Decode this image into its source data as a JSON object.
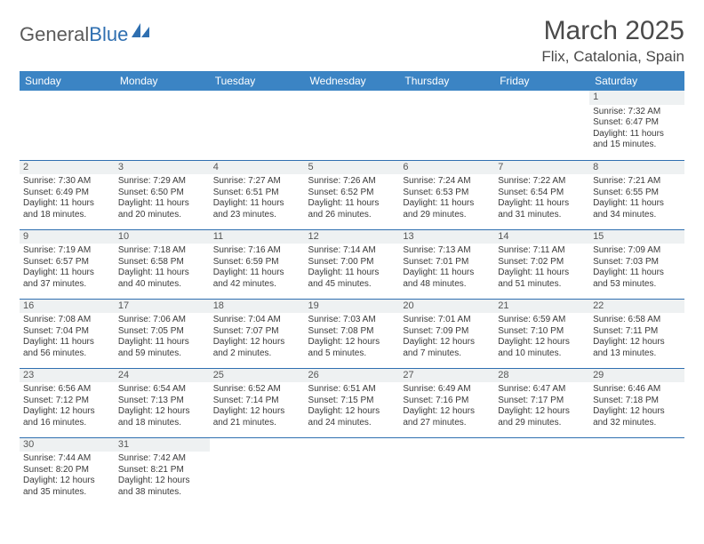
{
  "logo": {
    "text1": "General",
    "text2": "Blue",
    "sail_color": "#2f6fb0"
  },
  "title": "March 2025",
  "location": "Flix, Catalonia, Spain",
  "colors": {
    "header_bg": "#3b84c4",
    "header_fg": "#ffffff",
    "border": "#2f6fb0",
    "daynum_bg": "#eef1f2",
    "text": "#3a3a3a"
  },
  "day_headers": [
    "Sunday",
    "Monday",
    "Tuesday",
    "Wednesday",
    "Thursday",
    "Friday",
    "Saturday"
  ],
  "weeks": [
    [
      null,
      null,
      null,
      null,
      null,
      null,
      {
        "n": "1",
        "sunrise": "7:32 AM",
        "sunset": "6:47 PM",
        "daylight": "11 hours and 15 minutes."
      }
    ],
    [
      {
        "n": "2",
        "sunrise": "7:30 AM",
        "sunset": "6:49 PM",
        "daylight": "11 hours and 18 minutes."
      },
      {
        "n": "3",
        "sunrise": "7:29 AM",
        "sunset": "6:50 PM",
        "daylight": "11 hours and 20 minutes."
      },
      {
        "n": "4",
        "sunrise": "7:27 AM",
        "sunset": "6:51 PM",
        "daylight": "11 hours and 23 minutes."
      },
      {
        "n": "5",
        "sunrise": "7:26 AM",
        "sunset": "6:52 PM",
        "daylight": "11 hours and 26 minutes."
      },
      {
        "n": "6",
        "sunrise": "7:24 AM",
        "sunset": "6:53 PM",
        "daylight": "11 hours and 29 minutes."
      },
      {
        "n": "7",
        "sunrise": "7:22 AM",
        "sunset": "6:54 PM",
        "daylight": "11 hours and 31 minutes."
      },
      {
        "n": "8",
        "sunrise": "7:21 AM",
        "sunset": "6:55 PM",
        "daylight": "11 hours and 34 minutes."
      }
    ],
    [
      {
        "n": "9",
        "sunrise": "7:19 AM",
        "sunset": "6:57 PM",
        "daylight": "11 hours and 37 minutes."
      },
      {
        "n": "10",
        "sunrise": "7:18 AM",
        "sunset": "6:58 PM",
        "daylight": "11 hours and 40 minutes."
      },
      {
        "n": "11",
        "sunrise": "7:16 AM",
        "sunset": "6:59 PM",
        "daylight": "11 hours and 42 minutes."
      },
      {
        "n": "12",
        "sunrise": "7:14 AM",
        "sunset": "7:00 PM",
        "daylight": "11 hours and 45 minutes."
      },
      {
        "n": "13",
        "sunrise": "7:13 AM",
        "sunset": "7:01 PM",
        "daylight": "11 hours and 48 minutes."
      },
      {
        "n": "14",
        "sunrise": "7:11 AM",
        "sunset": "7:02 PM",
        "daylight": "11 hours and 51 minutes."
      },
      {
        "n": "15",
        "sunrise": "7:09 AM",
        "sunset": "7:03 PM",
        "daylight": "11 hours and 53 minutes."
      }
    ],
    [
      {
        "n": "16",
        "sunrise": "7:08 AM",
        "sunset": "7:04 PM",
        "daylight": "11 hours and 56 minutes."
      },
      {
        "n": "17",
        "sunrise": "7:06 AM",
        "sunset": "7:05 PM",
        "daylight": "11 hours and 59 minutes."
      },
      {
        "n": "18",
        "sunrise": "7:04 AM",
        "sunset": "7:07 PM",
        "daylight": "12 hours and 2 minutes."
      },
      {
        "n": "19",
        "sunrise": "7:03 AM",
        "sunset": "7:08 PM",
        "daylight": "12 hours and 5 minutes."
      },
      {
        "n": "20",
        "sunrise": "7:01 AM",
        "sunset": "7:09 PM",
        "daylight": "12 hours and 7 minutes."
      },
      {
        "n": "21",
        "sunrise": "6:59 AM",
        "sunset": "7:10 PM",
        "daylight": "12 hours and 10 minutes."
      },
      {
        "n": "22",
        "sunrise": "6:58 AM",
        "sunset": "7:11 PM",
        "daylight": "12 hours and 13 minutes."
      }
    ],
    [
      {
        "n": "23",
        "sunrise": "6:56 AM",
        "sunset": "7:12 PM",
        "daylight": "12 hours and 16 minutes."
      },
      {
        "n": "24",
        "sunrise": "6:54 AM",
        "sunset": "7:13 PM",
        "daylight": "12 hours and 18 minutes."
      },
      {
        "n": "25",
        "sunrise": "6:52 AM",
        "sunset": "7:14 PM",
        "daylight": "12 hours and 21 minutes."
      },
      {
        "n": "26",
        "sunrise": "6:51 AM",
        "sunset": "7:15 PM",
        "daylight": "12 hours and 24 minutes."
      },
      {
        "n": "27",
        "sunrise": "6:49 AM",
        "sunset": "7:16 PM",
        "daylight": "12 hours and 27 minutes."
      },
      {
        "n": "28",
        "sunrise": "6:47 AM",
        "sunset": "7:17 PM",
        "daylight": "12 hours and 29 minutes."
      },
      {
        "n": "29",
        "sunrise": "6:46 AM",
        "sunset": "7:18 PM",
        "daylight": "12 hours and 32 minutes."
      }
    ],
    [
      {
        "n": "30",
        "sunrise": "7:44 AM",
        "sunset": "8:20 PM",
        "daylight": "12 hours and 35 minutes."
      },
      {
        "n": "31",
        "sunrise": "7:42 AM",
        "sunset": "8:21 PM",
        "daylight": "12 hours and 38 minutes."
      },
      null,
      null,
      null,
      null,
      null
    ]
  ],
  "labels": {
    "sunrise": "Sunrise:",
    "sunset": "Sunset:",
    "daylight": "Daylight:"
  }
}
